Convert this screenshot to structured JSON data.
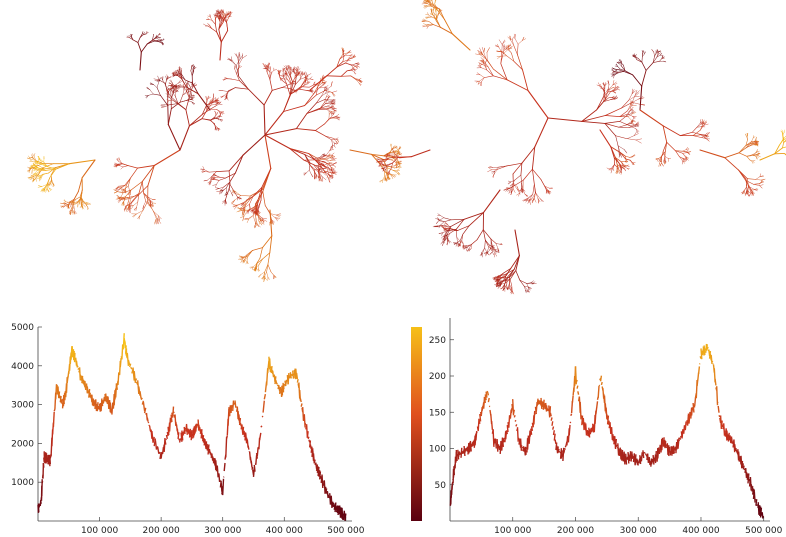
{
  "colors": {
    "low": "#5a0010",
    "mid": "#c8321e",
    "high": "#f6c018",
    "axis": "#444444"
  },
  "chart_data": [
    {
      "type": "tree",
      "panel": "top-left",
      "title": "",
      "grid": false,
      "legend": "none"
    },
    {
      "type": "tree",
      "panel": "top-right",
      "title": "",
      "grid": false,
      "legend": "none"
    },
    {
      "type": "line",
      "panel": "bottom-left",
      "title": "",
      "xlabel": "",
      "ylabel": "",
      "xlim": [
        0,
        510000
      ],
      "ylim": [
        0,
        5000
      ],
      "xticks": [
        100000,
        200000,
        300000,
        400000,
        500000
      ],
      "xtick_labels": [
        "100 000",
        "200 000",
        "300 000",
        "400 000",
        "500 000"
      ],
      "yticks": [
        1000,
        2000,
        3000,
        4000,
        5000
      ],
      "ytick_labels": [
        "1000",
        "2000",
        "3000",
        "4000",
        "5000"
      ],
      "grid": false,
      "legend": "none",
      "series": [
        {
          "x": [
            0,
            5000,
            10000,
            15000,
            20000,
            30000,
            40000,
            45000,
            55000,
            60000,
            70000,
            80000,
            90000,
            100000,
            110000,
            120000,
            130000,
            140000,
            145000,
            160000,
            175000,
            185000,
            200000,
            210000,
            220000,
            230000,
            240000,
            250000,
            260000,
            270000,
            280000,
            290000,
            300000,
            310000,
            320000,
            330000,
            340000,
            350000,
            360000,
            375000,
            385000,
            395000,
            400000,
            410000,
            420000,
            430000,
            440000,
            450000,
            460000,
            470000,
            480000,
            490000,
            500000
          ],
          "y": [
            300,
            500,
            1650,
            1600,
            1550,
            3450,
            3000,
            3300,
            4400,
            4200,
            3700,
            3400,
            3050,
            2900,
            3200,
            2850,
            3600,
            4700,
            4200,
            3600,
            2800,
            2200,
            1650,
            2200,
            2850,
            2050,
            2400,
            2200,
            2500,
            2050,
            1750,
            1400,
            750,
            2800,
            3050,
            2450,
            2050,
            1200,
            2050,
            4100,
            3650,
            3300,
            3500,
            3750,
            3800,
            2800,
            2100,
            1500,
            1100,
            700,
            400,
            250,
            100
          ]
        }
      ]
    },
    {
      "type": "line",
      "panel": "bottom-right",
      "title": "",
      "xlabel": "",
      "ylabel": "",
      "xlim": [
        0,
        510000
      ],
      "ylim": [
        0,
        280
      ],
      "xticks": [
        100000,
        200000,
        300000,
        400000,
        500000
      ],
      "xtick_labels": [
        "100 000",
        "200 000",
        "300 000",
        "400 000",
        "500 000"
      ],
      "yticks": [
        50,
        100,
        150,
        200,
        250
      ],
      "ytick_labels": [
        "50",
        "100",
        "150",
        "200",
        "250"
      ],
      "grid": false,
      "legend": "colorbar",
      "colorbar": {
        "gradient": "top-yellow-to-bottom-darkred"
      },
      "series": [
        {
          "x": [
            0,
            5000,
            10000,
            20000,
            30000,
            40000,
            50000,
            60000,
            70000,
            80000,
            90000,
            100000,
            110000,
            120000,
            130000,
            140000,
            150000,
            160000,
            170000,
            180000,
            190000,
            200000,
            210000,
            220000,
            230000,
            240000,
            250000,
            260000,
            270000,
            280000,
            290000,
            300000,
            310000,
            320000,
            330000,
            340000,
            350000,
            360000,
            370000,
            380000,
            390000,
            400000,
            410000,
            420000,
            430000,
            440000,
            450000,
            460000,
            470000,
            480000,
            490000,
            500000
          ],
          "y": [
            20,
            60,
            90,
            95,
            100,
            110,
            150,
            180,
            110,
            100,
            120,
            160,
            110,
            95,
            125,
            165,
            160,
            150,
            100,
            90,
            120,
            205,
            140,
            120,
            130,
            200,
            145,
            115,
            95,
            85,
            90,
            80,
            95,
            80,
            90,
            110,
            95,
            100,
            120,
            140,
            160,
            230,
            240,
            215,
            140,
            120,
            110,
            90,
            70,
            50,
            20,
            5
          ]
        }
      ]
    }
  ]
}
